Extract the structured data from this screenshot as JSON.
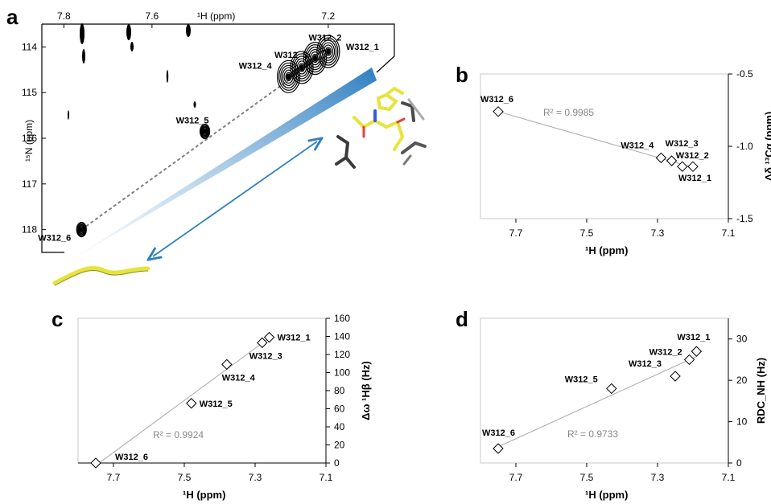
{
  "chart_data": [
    {
      "panel": "a",
      "type": "heatmap",
      "xlabel": "¹H (ppm)",
      "ylabel": "¹⁵N (ppm)",
      "x_ticks": [
        "7.8",
        "7.6",
        "7.2"
      ],
      "y_ticks": [
        "114",
        "115",
        "116",
        "117",
        "118"
      ],
      "xlim": [
        7.85,
        7.05
      ],
      "ylim": [
        113.5,
        118.5
      ],
      "peaks": [
        {
          "name": "W312_1",
          "x": 7.2,
          "y": 114.1
        },
        {
          "name": "W312_2",
          "x": 7.23,
          "y": 114.25
        },
        {
          "name": "W312_3",
          "x": 7.26,
          "y": 114.45
        },
        {
          "name": "W312_4",
          "x": 7.29,
          "y": 114.65
        },
        {
          "name": "W312_5",
          "x": 7.48,
          "y": 115.85
        },
        {
          "name": "W312_6",
          "x": 7.76,
          "y": 118.0
        }
      ]
    },
    {
      "panel": "b",
      "type": "scatter",
      "xlabel": "¹H (ppm)",
      "ylabel": "Δδ ¹³Cα (ppm)",
      "x_ticks": [
        "7.7",
        "7.5",
        "7.3",
        "7.1"
      ],
      "y_ticks": [
        "-0.5",
        "-1.0",
        "-1.5"
      ],
      "xlim": [
        7.8,
        7.1
      ],
      "ylim": [
        -1.5,
        -0.5
      ],
      "r2": "R² = 0.9985",
      "points": [
        {
          "name": "W312_6",
          "x": 7.75,
          "y": -0.76
        },
        {
          "name": "W312_4",
          "x": 7.29,
          "y": -1.08
        },
        {
          "name": "W312_3",
          "x": 7.26,
          "y": -1.1
        },
        {
          "name": "W312_2",
          "x": 7.23,
          "y": -1.14
        },
        {
          "name": "W312_1",
          "x": 7.2,
          "y": -1.14
        }
      ]
    },
    {
      "panel": "c",
      "type": "scatter",
      "xlabel": "¹H (ppm)",
      "ylabel": "Δω ¹Hβ (Hz)",
      "x_ticks": [
        "7.7",
        "7.5",
        "7.3",
        "7.1"
      ],
      "y_ticks": [
        "0",
        "20",
        "40",
        "60",
        "80",
        "100",
        "120",
        "140",
        "160"
      ],
      "xlim": [
        7.8,
        7.1
      ],
      "ylim": [
        0,
        160
      ],
      "r2": "R² = 0.9924",
      "points": [
        {
          "name": "W312_6",
          "x": 7.75,
          "y": 0
        },
        {
          "name": "W312_5",
          "x": 7.48,
          "y": 66
        },
        {
          "name": "W312_4",
          "x": 7.38,
          "y": 109
        },
        {
          "name": "W312_3",
          "x": 7.28,
          "y": 133
        },
        {
          "name": "W312_1",
          "x": 7.26,
          "y": 139
        }
      ]
    },
    {
      "panel": "d",
      "type": "scatter",
      "xlabel": "¹H (ppm)",
      "ylabel": "RDC_NH (Hz)",
      "x_ticks": [
        "7.7",
        "7.5",
        "7.3",
        "7.1"
      ],
      "y_ticks": [
        "0",
        "10",
        "20",
        "30"
      ],
      "xlim": [
        7.8,
        7.1
      ],
      "ylim": [
        0,
        35
      ],
      "r2": "R² = 0.9733",
      "points": [
        {
          "name": "W312_6",
          "x": 7.75,
          "y": 3.5
        },
        {
          "name": "W312_5",
          "x": 7.43,
          "y": 18
        },
        {
          "name": "W312_3",
          "x": 7.25,
          "y": 21
        },
        {
          "name": "W312_2",
          "x": 7.21,
          "y": 25
        },
        {
          "name": "W312_1",
          "x": 7.19,
          "y": 27
        }
      ]
    }
  ],
  "panel_letters": [
    "a",
    "b",
    "c",
    "d"
  ],
  "colors": {
    "contour": "#000000",
    "fit_line": "#a8a8a8",
    "dashed": "#808080",
    "wedge": "#2f7fc1",
    "arrow": "#2f7fc1",
    "helix": "#e6e43a"
  }
}
